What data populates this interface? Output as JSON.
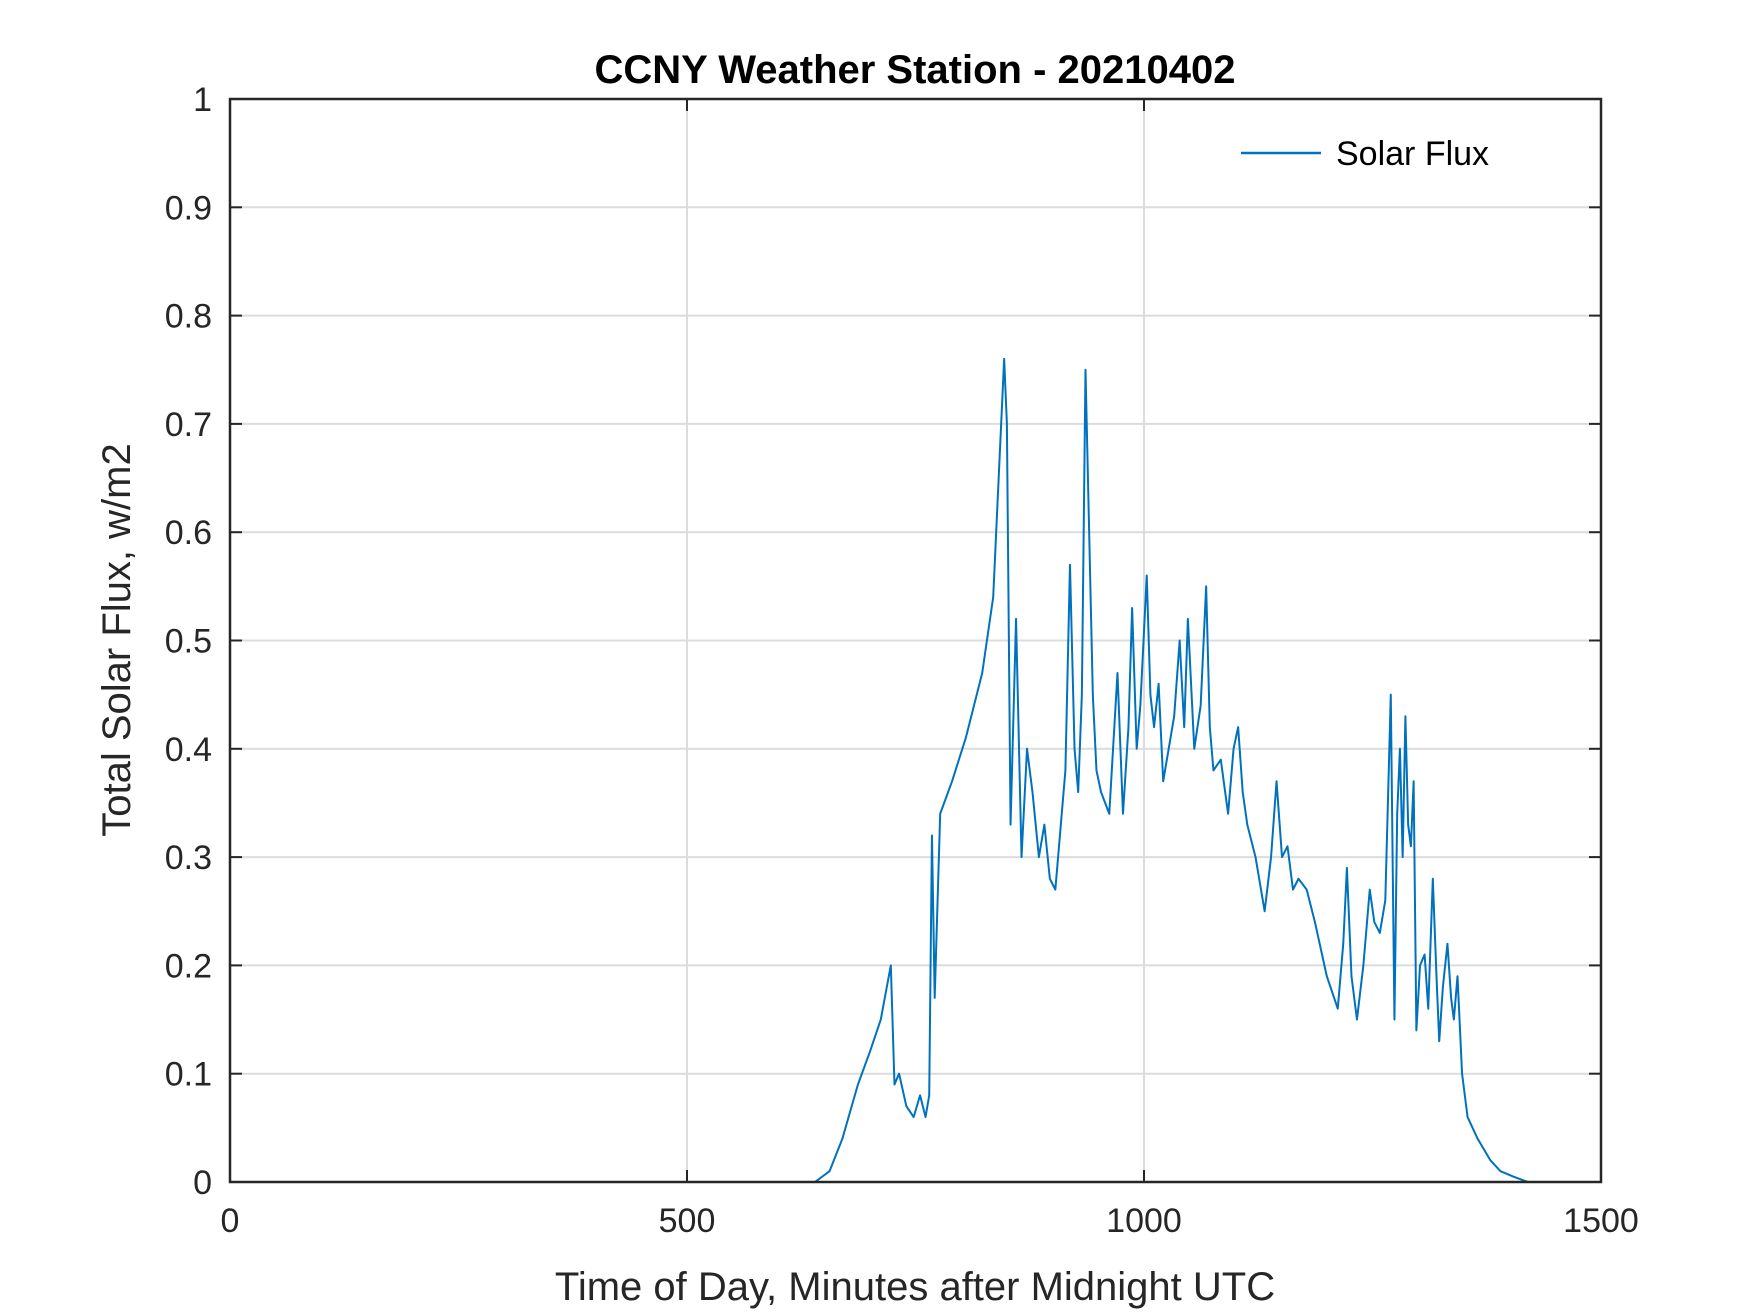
{
  "chart_data": {
    "type": "line",
    "title": "CCNY Weather Station - 20210402",
    "xlabel": "Time of Day, Minutes after Midnight UTC",
    "ylabel": "Total Solar Flux, w/m2",
    "x": [
      0,
      640,
      656,
      670,
      687,
      700,
      712,
      723,
      727,
      732,
      740,
      748,
      755,
      761,
      765,
      768,
      771,
      777,
      790,
      805,
      823,
      835,
      841,
      847,
      850,
      854,
      860,
      866,
      872,
      878,
      885,
      891,
      897,
      903,
      909,
      914,
      919,
      924,
      928,
      932,
      936,
      940,
      944,
      948,
      953,
      962,
      971,
      977,
      983,
      987,
      992,
      996,
      1003,
      1007,
      1011,
      1016,
      1021,
      1027,
      1033,
      1039,
      1044,
      1048,
      1055,
      1062,
      1068,
      1072,
      1076,
      1084,
      1092,
      1098,
      1103,
      1108,
      1113,
      1122,
      1132,
      1139,
      1145,
      1151,
      1157,
      1163,
      1169,
      1178,
      1187,
      1200,
      1212,
      1218,
      1222,
      1227,
      1233,
      1240,
      1247,
      1252,
      1258,
      1264,
      1270,
      1274,
      1277,
      1280,
      1283,
      1286,
      1289,
      1292,
      1295,
      1298,
      1302,
      1307,
      1311,
      1316,
      1320,
      1323,
      1327,
      1332,
      1336,
      1339,
      1343,
      1348,
      1354,
      1365,
      1379,
      1390,
      1404,
      1420,
      1441
    ],
    "series": [
      {
        "name": "Solar Flux",
        "color": "#0072bd",
        "values": [
          0,
          0,
          0.01,
          0.04,
          0.09,
          0.12,
          0.15,
          0.2,
          0.09,
          0.1,
          0.07,
          0.06,
          0.08,
          0.06,
          0.08,
          0.32,
          0.17,
          0.34,
          0.37,
          0.41,
          0.47,
          0.54,
          0.65,
          0.76,
          0.7,
          0.33,
          0.52,
          0.3,
          0.4,
          0.36,
          0.3,
          0.33,
          0.28,
          0.27,
          0.33,
          0.38,
          0.57,
          0.4,
          0.36,
          0.45,
          0.75,
          0.6,
          0.45,
          0.38,
          0.36,
          0.34,
          0.47,
          0.34,
          0.42,
          0.53,
          0.4,
          0.44,
          0.56,
          0.45,
          0.42,
          0.46,
          0.37,
          0.4,
          0.43,
          0.5,
          0.42,
          0.52,
          0.4,
          0.44,
          0.55,
          0.42,
          0.38,
          0.39,
          0.34,
          0.4,
          0.42,
          0.36,
          0.33,
          0.3,
          0.25,
          0.3,
          0.37,
          0.3,
          0.31,
          0.27,
          0.28,
          0.27,
          0.24,
          0.19,
          0.16,
          0.22,
          0.29,
          0.19,
          0.15,
          0.2,
          0.27,
          0.24,
          0.23,
          0.26,
          0.45,
          0.15,
          0.34,
          0.4,
          0.3,
          0.43,
          0.33,
          0.31,
          0.37,
          0.14,
          0.2,
          0.21,
          0.16,
          0.28,
          0.19,
          0.13,
          0.18,
          0.22,
          0.17,
          0.15,
          0.19,
          0.1,
          0.06,
          0.04,
          0.02,
          0.01,
          0.005,
          0,
          0
        ]
      }
    ],
    "xlim": [
      0,
      1500
    ],
    "xticks": [
      0,
      500,
      1000,
      1500
    ],
    "ylim": [
      0,
      1
    ],
    "yticks": [
      0,
      0.1,
      0.2,
      0.3,
      0.4,
      0.5,
      0.6,
      0.7,
      0.8,
      0.9,
      1
    ],
    "grid": true,
    "legend": "upper right"
  }
}
